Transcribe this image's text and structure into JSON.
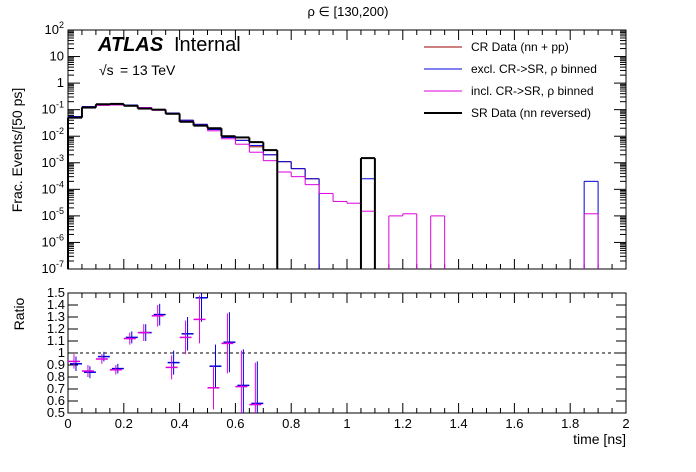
{
  "title": "ρ ∈ [130,200)",
  "atlas": {
    "bold": "ATLAS",
    "label": "Internal",
    "energy_prefix": "√s",
    "energy": "= 13 TeV"
  },
  "top_panel": {
    "ylabel": "Frac. Events/[50 ps]",
    "y_tick_labels": [
      "10^-7",
      "10^-6",
      "10^-5",
      "10^-4",
      "10^-3",
      "10^-2",
      "10^-1",
      "1",
      "10",
      "10^2"
    ]
  },
  "bottom_panel": {
    "ylabel": "Ratio",
    "y_tick_labels": [
      "0.5",
      "0.6",
      "0.7",
      "0.8",
      "0.9",
      "1",
      "1.1",
      "1.2",
      "1.3",
      "1.4",
      "1.5"
    ]
  },
  "xlabel": "time [ns]",
  "x_tick_labels": [
    "0",
    "0.2",
    "0.4",
    "0.6",
    "0.8",
    "1",
    "1.2",
    "1.4",
    "1.6",
    "1.8",
    "2"
  ],
  "legend": [
    {
      "label": "CR Data (nn + pp)",
      "color": "#990000"
    },
    {
      "label": "excl. CR->SR, ρ binned",
      "color": "#0000dd"
    },
    {
      "label": "incl. CR->SR, ρ binned",
      "color": "#dd00dd"
    },
    {
      "label": "SR Data (nn reversed)",
      "color": "#000000"
    }
  ],
  "chart_data": {
    "type": "histogram",
    "xlim": [
      0,
      2
    ],
    "bin_width": 0.05,
    "top": {
      "yscale": "log",
      "ylim": [
        1e-07,
        100
      ],
      "series": [
        {
          "name": "CR Data (nn + pp)",
          "color": "#990000",
          "bins": [
            [
              0.0,
              0.05
            ],
            [
              0.05,
              0.1
            ],
            [
              0.1,
              0.15
            ],
            [
              0.15,
              0.2
            ],
            [
              0.2,
              0.25
            ],
            [
              0.25,
              0.3
            ],
            [
              0.3,
              0.35
            ],
            [
              0.35,
              0.4
            ],
            [
              0.4,
              0.45
            ],
            [
              0.45,
              0.5
            ],
            [
              0.5,
              0.55
            ],
            [
              0.55,
              0.6
            ],
            [
              0.6,
              0.65
            ],
            [
              0.65,
              0.7
            ],
            [
              0.7,
              0.75
            ],
            [
              0.75,
              0.8
            ],
            [
              0.8,
              0.85
            ],
            [
              0.85,
              0.9
            ]
          ],
          "values": [
            0.055,
            0.13,
            0.155,
            0.155,
            0.15,
            0.12,
            0.1,
            0.075,
            0.04,
            0.028,
            0.018,
            0.009,
            0.007,
            0.004,
            0.002,
            0.0011,
            0.0006,
            0.00025
          ]
        },
        {
          "name": "excl. CR->SR, ρ binned",
          "color": "#0000dd",
          "bins": [
            [
              0.0,
              0.05
            ],
            [
              0.05,
              0.1
            ],
            [
              0.1,
              0.15
            ],
            [
              0.15,
              0.2
            ],
            [
              0.2,
              0.25
            ],
            [
              0.25,
              0.3
            ],
            [
              0.3,
              0.35
            ],
            [
              0.35,
              0.4
            ],
            [
              0.4,
              0.45
            ],
            [
              0.45,
              0.5
            ],
            [
              0.5,
              0.55
            ],
            [
              0.55,
              0.6
            ],
            [
              0.6,
              0.65
            ],
            [
              0.65,
              0.7
            ],
            [
              0.7,
              0.75
            ],
            [
              0.75,
              0.8
            ],
            [
              0.8,
              0.85
            ],
            [
              0.85,
              0.9
            ],
            [
              1.05,
              1.1
            ],
            [
              1.85,
              1.9
            ]
          ],
          "values": [
            0.055,
            0.13,
            0.155,
            0.155,
            0.15,
            0.12,
            0.1,
            0.075,
            0.04,
            0.028,
            0.018,
            0.009,
            0.007,
            0.0045,
            0.002,
            0.0011,
            0.0006,
            0.00025,
            0.00025,
            0.0002
          ]
        },
        {
          "name": "incl. CR->SR, ρ binned",
          "color": "#dd00dd",
          "bins": [
            [
              0.0,
              0.05
            ],
            [
              0.05,
              0.1
            ],
            [
              0.1,
              0.15
            ],
            [
              0.15,
              0.2
            ],
            [
              0.2,
              0.25
            ],
            [
              0.25,
              0.3
            ],
            [
              0.3,
              0.35
            ],
            [
              0.35,
              0.4
            ],
            [
              0.4,
              0.45
            ],
            [
              0.45,
              0.5
            ],
            [
              0.5,
              0.55
            ],
            [
              0.55,
              0.6
            ],
            [
              0.6,
              0.65
            ],
            [
              0.65,
              0.7
            ],
            [
              0.7,
              0.75
            ],
            [
              0.75,
              0.8
            ],
            [
              0.8,
              0.85
            ],
            [
              0.85,
              0.9
            ],
            [
              0.9,
              0.95
            ],
            [
              0.95,
              1.0
            ],
            [
              1.0,
              1.05
            ],
            [
              1.05,
              1.1
            ],
            [
              1.15,
              1.2
            ],
            [
              1.2,
              1.25
            ],
            [
              1.3,
              1.35
            ],
            [
              1.85,
              1.9
            ]
          ],
          "values": [
            0.05,
            0.12,
            0.145,
            0.15,
            0.14,
            0.12,
            0.095,
            0.07,
            0.037,
            0.026,
            0.016,
            0.008,
            0.005,
            0.0025,
            0.0012,
            0.00045,
            0.0003,
            0.00015,
            7e-05,
            3.5e-05,
            3e-05,
            1.5e-05,
            1e-05,
            1.2e-05,
            1e-05,
            1.2e-05
          ]
        },
        {
          "name": "SR Data (nn reversed)",
          "color": "#000000",
          "bins": [
            [
              0.0,
              0.05
            ],
            [
              0.05,
              0.1
            ],
            [
              0.1,
              0.15
            ],
            [
              0.15,
              0.2
            ],
            [
              0.2,
              0.25
            ],
            [
              0.25,
              0.3
            ],
            [
              0.3,
              0.35
            ],
            [
              0.35,
              0.4
            ],
            [
              0.4,
              0.45
            ],
            [
              0.45,
              0.5
            ],
            [
              0.5,
              0.55
            ],
            [
              0.55,
              0.6
            ],
            [
              0.6,
              0.65
            ],
            [
              0.65,
              0.7
            ],
            [
              0.7,
              0.75
            ],
            [
              1.05,
              1.1
            ]
          ],
          "values": [
            0.05,
            0.12,
            0.16,
            0.165,
            0.14,
            0.11,
            0.1,
            0.07,
            0.035,
            0.025,
            0.02,
            0.01,
            0.009,
            0.006,
            0.003,
            0.0015
          ]
        }
      ]
    },
    "bottom": {
      "ylim": [
        0.5,
        1.5
      ],
      "reference_line": 1,
      "series": [
        {
          "name": "excl. CR->SR, ρ binned",
          "color": "#0000dd",
          "x": [
            0.025,
            0.075,
            0.125,
            0.175,
            0.225,
            0.275,
            0.325,
            0.375,
            0.425,
            0.475,
            0.525,
            0.575,
            0.625,
            0.675
          ],
          "values": [
            0.91,
            0.84,
            0.97,
            0.87,
            1.13,
            1.17,
            1.32,
            0.92,
            1.16,
            1.46,
            0.89,
            1.09,
            0.73,
            0.58
          ],
          "errors": [
            0.06,
            0.05,
            0.04,
            0.04,
            0.05,
            0.07,
            0.09,
            0.1,
            0.14,
            0.2,
            0.18,
            0.25,
            0.3,
            0.35
          ]
        },
        {
          "name": "incl. CR->SR, ρ binned",
          "color": "#dd00dd",
          "x": [
            0.025,
            0.075,
            0.125,
            0.175,
            0.225,
            0.275,
            0.325,
            0.375,
            0.425,
            0.475,
            0.525,
            0.575,
            0.625,
            0.675
          ],
          "values": [
            0.93,
            0.85,
            0.95,
            0.86,
            1.12,
            1.17,
            1.31,
            0.88,
            1.13,
            1.28,
            0.71,
            1.08,
            0.72,
            0.57
          ],
          "errors": [
            0.06,
            0.05,
            0.04,
            0.04,
            0.05,
            0.07,
            0.09,
            0.1,
            0.14,
            0.2,
            0.18,
            0.25,
            0.3,
            0.35
          ]
        }
      ]
    }
  }
}
